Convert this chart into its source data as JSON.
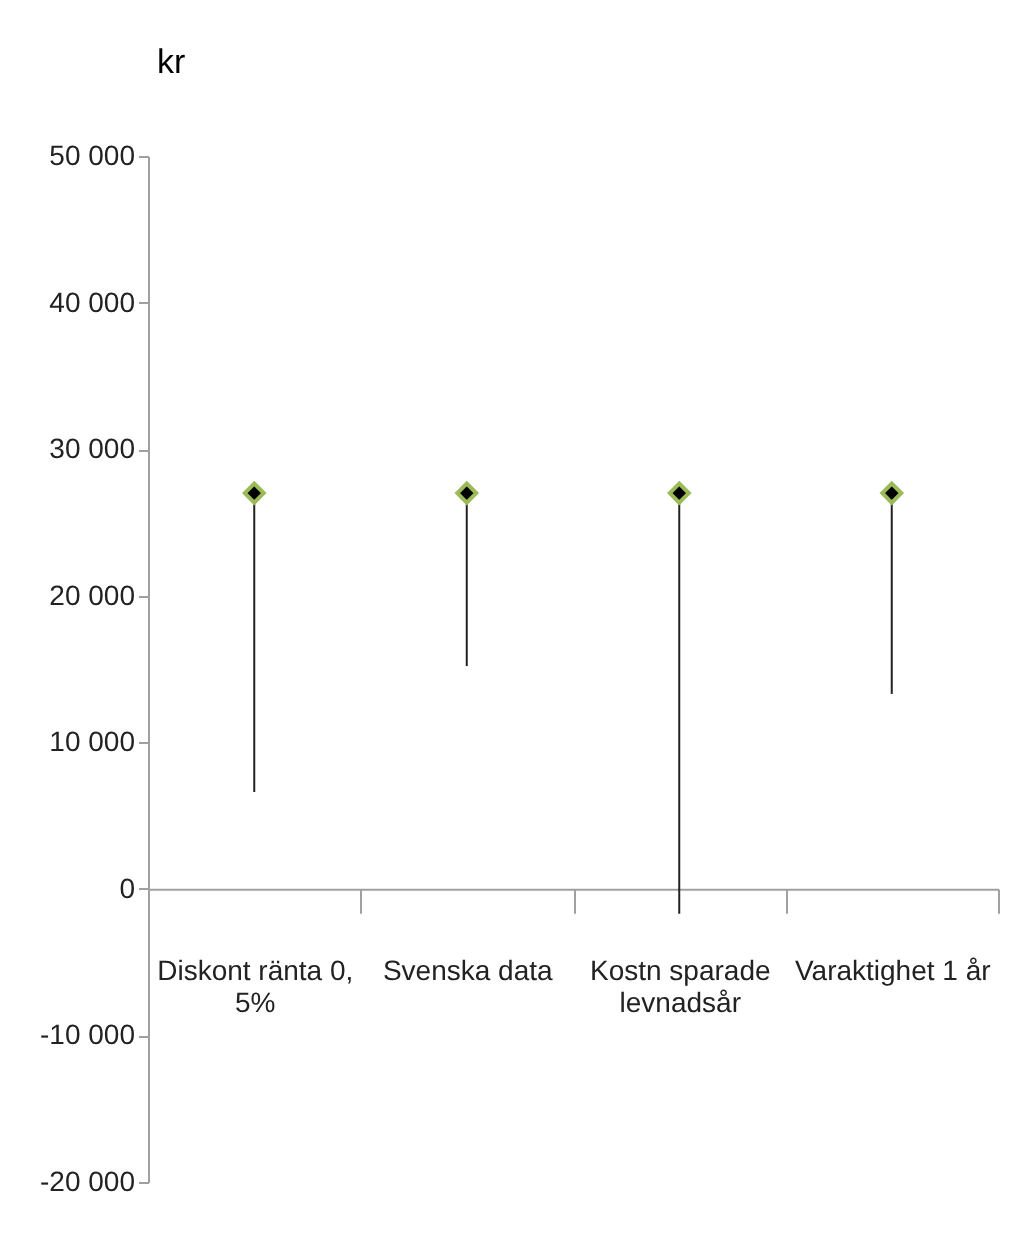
{
  "chart_data": {
    "type": "scatter",
    "ylabel": "kr",
    "categories": [
      "Diskont ränta 0, 5%",
      "Svenska data",
      "Kostn sparade levnadsår",
      "Varaktighet 1 år"
    ],
    "series": [
      {
        "color": "#000000",
        "values": [
          27000,
          27000,
          27000,
          27000
        ],
        "errors": [
          [
            6600,
            27000
          ],
          [
            15200,
            27000
          ],
          [
            -1700,
            27000
          ],
          [
            13300,
            27000
          ]
        ]
      }
    ],
    "marker": "diamond",
    "ylim": [
      -20000,
      50000
    ],
    "yticks": [
      {
        "value": -20000,
        "label": "-20 000"
      },
      {
        "value": -10000,
        "label": "-10 000"
      },
      0,
      {
        "value": 10000,
        "label": "10 000"
      },
      {
        "value": 20000,
        "label": "20 000"
      },
      {
        "value": 30000,
        "label": "30 000"
      },
      {
        "value": 40000,
        "label": "40 000"
      },
      {
        "value": 50000,
        "label": "50 000"
      }
    ],
    "grid": false
  }
}
